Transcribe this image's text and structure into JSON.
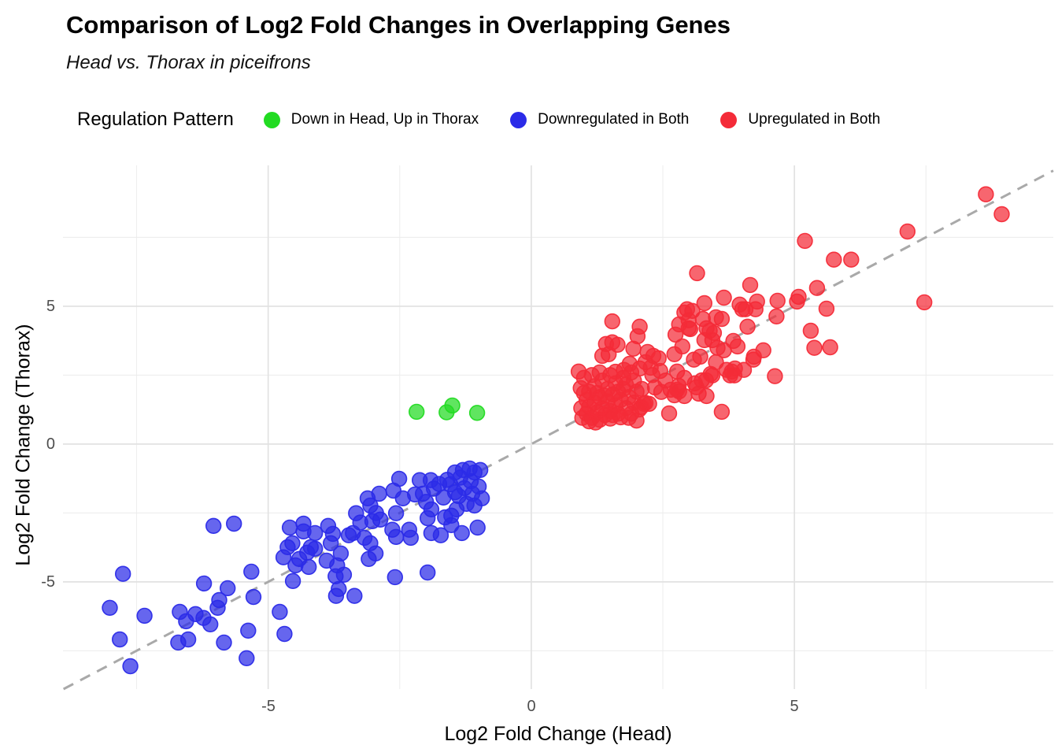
{
  "title": "Comparison of Log2 Fold Changes in Overlapping Genes",
  "subtitle": "Head vs. Thorax in piceifrons",
  "legend": {
    "title": "Regulation Pattern",
    "items": [
      {
        "label": "Down in Head, Up in Thorax",
        "color": "#22DB22"
      },
      {
        "label": "Downregulated in Both",
        "color": "#2B2BE8"
      },
      {
        "label": "Upregulated in Both",
        "color": "#F42B38"
      }
    ]
  },
  "axes": {
    "x_title": "Log2 Fold Change (Head)",
    "y_title": "Log2 Fold Change (Thorax)"
  },
  "chart_data": {
    "type": "scatter",
    "title": "Comparison of Log2 Fold Changes in Overlapping Genes",
    "subtitle": "Head vs. Thorax in piceifrons",
    "xlabel": "Log2 Fold Change (Head)",
    "ylabel": "Log2 Fold Change (Thorax)",
    "xlim": [
      -8.9,
      9.92
    ],
    "ylim": [
      -8.89,
      10.11
    ],
    "xticks_major": [
      -5,
      0,
      5
    ],
    "xticks_minor": [
      -7.5,
      -2.5,
      2.5,
      7.5
    ],
    "yticks_major": [
      5,
      0,
      -5
    ],
    "yticks_minor": [
      7.5,
      2.5,
      -2.5,
      -7.5
    ],
    "xtick_labels": [
      "-5",
      "0",
      "5"
    ],
    "ytick_labels": [
      "5",
      "0",
      "-5"
    ],
    "grid": true,
    "legend_position": "top",
    "reference_line": {
      "type": "identity y=x",
      "style": "dashed",
      "color": "#A9A9A9"
    },
    "series": [
      {
        "name": "Down in Head, Up in Thorax",
        "color": "#22DB22",
        "points": [
          [
            -2.18,
            1.17
          ],
          [
            -1.61,
            1.15
          ],
          [
            -1.5,
            1.4
          ],
          [
            -1.03,
            1.13
          ]
        ]
      },
      {
        "name": "Downregulated in Both",
        "color": "#2B2BE8",
        "points": [
          [
            -8.01,
            -5.94
          ],
          [
            -7.76,
            -4.71
          ],
          [
            -7.82,
            -7.09
          ],
          [
            -7.62,
            -8.06
          ],
          [
            -7.35,
            -6.23
          ],
          [
            -6.71,
            -7.2
          ],
          [
            -6.68,
            -6.09
          ],
          [
            -6.56,
            -6.43
          ],
          [
            -6.52,
            -7.09
          ],
          [
            -6.38,
            -6.17
          ],
          [
            -6.23,
            -6.31
          ],
          [
            -6.22,
            -5.06
          ],
          [
            -6.1,
            -6.54
          ],
          [
            -6.04,
            -2.97
          ],
          [
            -5.96,
            -5.94
          ],
          [
            -5.93,
            -5.66
          ],
          [
            -5.84,
            -7.2
          ],
          [
            -5.77,
            -5.23
          ],
          [
            -5.65,
            -2.89
          ],
          [
            -5.41,
            -7.77
          ],
          [
            -5.38,
            -6.77
          ],
          [
            -5.32,
            -4.63
          ],
          [
            -5.28,
            -5.55
          ],
          [
            -4.78,
            -6.09
          ],
          [
            -4.69,
            -6.89
          ],
          [
            -4.71,
            -4.11
          ],
          [
            -4.63,
            -3.74
          ],
          [
            -4.59,
            -3.03
          ],
          [
            -4.54,
            -3.6
          ],
          [
            -4.48,
            -4.4
          ],
          [
            -4.53,
            -4.97
          ],
          [
            -4.41,
            -4.17
          ],
          [
            -4.33,
            -2.89
          ],
          [
            -4.33,
            -3.17
          ],
          [
            -4.26,
            -3.94
          ],
          [
            -4.23,
            -4.46
          ],
          [
            -4.19,
            -3.74
          ],
          [
            -4.11,
            -3.23
          ],
          [
            -4.11,
            -3.8
          ],
          [
            -3.89,
            -4.23
          ],
          [
            -3.86,
            -2.97
          ],
          [
            -3.81,
            -3.6
          ],
          [
            -3.77,
            -3.26
          ],
          [
            -3.72,
            -4.8
          ],
          [
            -3.71,
            -5.51
          ],
          [
            -3.69,
            -4.4
          ],
          [
            -3.66,
            -5.26
          ],
          [
            -3.62,
            -3.97
          ],
          [
            -3.56,
            -4.74
          ],
          [
            -3.47,
            -3.31
          ],
          [
            -3.39,
            -3.23
          ],
          [
            -3.36,
            -5.51
          ],
          [
            -3.33,
            -2.51
          ],
          [
            -3.25,
            -2.85
          ],
          [
            -3.17,
            -3.4
          ],
          [
            -3.11,
            -1.97
          ],
          [
            -3.09,
            -4.17
          ],
          [
            -3.06,
            -2.23
          ],
          [
            -3.06,
            -3.6
          ],
          [
            -3.02,
            -2.8
          ],
          [
            -2.96,
            -3.97
          ],
          [
            -2.95,
            -2.5
          ],
          [
            -2.89,
            -1.8
          ],
          [
            -2.87,
            -2.74
          ],
          [
            -2.64,
            -3.11
          ],
          [
            -2.62,
            -1.69
          ],
          [
            -2.59,
            -4.83
          ],
          [
            -2.57,
            -2.51
          ],
          [
            -2.57,
            -3.37
          ],
          [
            -2.51,
            -1.26
          ],
          [
            -2.44,
            -1.97
          ],
          [
            -2.32,
            -3.11
          ],
          [
            -2.29,
            -3.4
          ],
          [
            -2.21,
            -1.83
          ],
          [
            -2.12,
            -1.31
          ],
          [
            -2.06,
            -1.8
          ],
          [
            -2.0,
            -2.1
          ],
          [
            -1.97,
            -2.69
          ],
          [
            -1.97,
            -4.66
          ],
          [
            -1.91,
            -1.31
          ],
          [
            -1.9,
            -2.37
          ],
          [
            -1.9,
            -3.23
          ],
          [
            -1.85,
            -1.62
          ],
          [
            -1.75,
            -1.45
          ],
          [
            -1.72,
            -3.31
          ],
          [
            -1.67,
            -1.94
          ],
          [
            -1.64,
            -2.66
          ],
          [
            -1.6,
            -1.3
          ],
          [
            -1.54,
            -1.46
          ],
          [
            -1.52,
            -2.6
          ],
          [
            -1.52,
            -2.94
          ],
          [
            -1.45,
            -1.03
          ],
          [
            -1.45,
            -1.75
          ],
          [
            -1.42,
            -2.37
          ],
          [
            -1.38,
            -1.89
          ],
          [
            -1.35,
            -1.22
          ],
          [
            -1.32,
            -3.23
          ],
          [
            -1.3,
            -0.94
          ],
          [
            -1.27,
            -1.6
          ],
          [
            -1.23,
            -2.17
          ],
          [
            -1.17,
            -0.89
          ],
          [
            -1.15,
            -1.35
          ],
          [
            -1.12,
            -1.8
          ],
          [
            -1.08,
            -1.03
          ],
          [
            -1.08,
            -2.23
          ],
          [
            -1.02,
            -3.03
          ],
          [
            -1.0,
            -1.54
          ],
          [
            -0.97,
            -0.94
          ],
          [
            -0.94,
            -1.97
          ]
        ]
      },
      {
        "name": "Upregulated in Both",
        "color": "#F42B38",
        "points": [
          [
            8.64,
            9.06
          ],
          [
            8.94,
            8.34
          ],
          [
            7.15,
            7.71
          ],
          [
            7.47,
            5.14
          ],
          [
            6.08,
            6.69
          ],
          [
            5.75,
            6.69
          ],
          [
            5.43,
            5.66
          ],
          [
            5.2,
            7.37
          ],
          [
            5.61,
            4.91
          ],
          [
            5.38,
            3.49
          ],
          [
            5.68,
            3.51
          ],
          [
            5.31,
            4.11
          ],
          [
            5.08,
            5.34
          ],
          [
            5.05,
            5.17
          ],
          [
            4.68,
            5.2
          ],
          [
            4.66,
            4.63
          ],
          [
            4.29,
            5.17
          ],
          [
            4.16,
            5.77
          ],
          [
            4.07,
            4.89
          ],
          [
            4.01,
            4.89
          ],
          [
            4.26,
            4.89
          ],
          [
            4.11,
            4.26
          ],
          [
            4.23,
            3.17
          ],
          [
            4.41,
            3.4
          ],
          [
            4.22,
            3.06
          ],
          [
            4.63,
            2.46
          ],
          [
            4.04,
            2.69
          ],
          [
            3.96,
            5.06
          ],
          [
            3.92,
            3.54
          ],
          [
            3.84,
            3.74
          ],
          [
            3.66,
            5.31
          ],
          [
            3.62,
            4.54
          ],
          [
            3.51,
            4.6
          ],
          [
            3.47,
            4.03
          ],
          [
            3.33,
            4.2
          ],
          [
            3.29,
            5.11
          ],
          [
            3.29,
            3.77
          ],
          [
            3.24,
            2.31
          ],
          [
            3.21,
            3.17
          ],
          [
            3.18,
            1.83
          ],
          [
            3.15,
            6.2
          ],
          [
            3.14,
            2.06
          ],
          [
            3.11,
            2.2
          ],
          [
            3.09,
            3.06
          ],
          [
            3.06,
            4.83
          ],
          [
            3.02,
            4.17
          ],
          [
            2.99,
            4.2
          ],
          [
            2.96,
            4.89
          ],
          [
            2.91,
            4.77
          ],
          [
            2.91,
            2.4
          ],
          [
            2.91,
            1.74
          ],
          [
            2.87,
            3.54
          ],
          [
            2.81,
            4.34
          ],
          [
            2.81,
            1.91
          ],
          [
            2.8,
            2.11
          ],
          [
            2.77,
            2.63
          ],
          [
            2.77,
            1.97
          ],
          [
            2.74,
            3.97
          ],
          [
            2.72,
            3.26
          ],
          [
            2.72,
            1.77
          ],
          [
            2.65,
            1.97
          ],
          [
            2.62,
            1.11
          ],
          [
            2.55,
            2.3
          ],
          [
            2.47,
            1.89
          ],
          [
            2.45,
            2.65
          ],
          [
            2.42,
            3.11
          ],
          [
            2.35,
            2.05
          ],
          [
            2.32,
            3.2
          ],
          [
            2.3,
            2.5
          ],
          [
            2.27,
            2.77
          ],
          [
            2.24,
            1.46
          ],
          [
            2.21,
            3.34
          ],
          [
            2.17,
            2.97
          ],
          [
            2.17,
            1.49
          ],
          [
            2.14,
            1.46
          ],
          [
            2.09,
            1.34
          ],
          [
            2.06,
            4.26
          ],
          [
            2.06,
            2.74
          ],
          [
            2.02,
            3.91
          ],
          [
            1.94,
            3.46
          ],
          [
            1.87,
            2.91
          ],
          [
            1.76,
            2.69
          ],
          [
            1.64,
            3.6
          ],
          [
            1.54,
            4.45
          ],
          [
            1.54,
            3.69
          ],
          [
            1.47,
            3.26
          ],
          [
            1.42,
            3.63
          ],
          [
            1.35,
            3.2
          ],
          [
            0.9,
            2.63
          ],
          [
            1.0,
            2.4
          ],
          [
            0.94,
            2.03
          ],
          [
            2.99,
            4.49
          ],
          [
            3.26,
            4.54
          ],
          [
            3.39,
            4.11
          ],
          [
            3.44,
            3.77
          ],
          [
            3.54,
            3.49
          ],
          [
            3.66,
            3.4
          ],
          [
            3.44,
            2.49
          ],
          [
            3.32,
            2.31
          ],
          [
            3.71,
            2.69
          ],
          [
            3.86,
            2.49
          ],
          [
            3.33,
            1.74
          ],
          [
            3.62,
            1.17
          ],
          [
            3.51,
            2.97
          ],
          [
            3.87,
            2.74
          ],
          [
            3.78,
            2.49
          ],
          [
            3.41,
            2.54
          ],
          [
            3.81,
            2.63
          ],
          [
            1.05,
            1.1
          ],
          [
            1.1,
            1.35
          ],
          [
            1.15,
            0.95
          ],
          [
            1.2,
            1.5
          ],
          [
            1.25,
            1.15
          ],
          [
            1.3,
            0.88
          ],
          [
            1.3,
            1.7
          ],
          [
            1.35,
            1.3
          ],
          [
            1.4,
            1.05
          ],
          [
            1.45,
            1.55
          ],
          [
            1.5,
            1.2
          ],
          [
            1.5,
            0.92
          ],
          [
            1.55,
            1.8
          ],
          [
            1.6,
            1.4
          ],
          [
            1.65,
            1.1
          ],
          [
            1.7,
            1.6
          ],
          [
            1.7,
            0.97
          ],
          [
            1.75,
            2.0
          ],
          [
            1.8,
            1.3
          ],
          [
            1.85,
            1.7
          ],
          [
            1.9,
            1.1
          ],
          [
            1.95,
            1.5
          ],
          [
            2.0,
            1.9
          ],
          [
            2.05,
            1.25
          ],
          [
            1.1,
            1.9
          ],
          [
            1.2,
            2.1
          ],
          [
            1.35,
            2.3
          ],
          [
            1.5,
            2.5
          ],
          [
            1.6,
            2.2
          ],
          [
            1.75,
            2.4
          ],
          [
            1.9,
            2.6
          ],
          [
            1.05,
            1.6
          ],
          [
            0.95,
            1.3
          ],
          [
            1.0,
            1.85
          ],
          [
            1.15,
            2.5
          ],
          [
            1.3,
            2.6
          ],
          [
            1.45,
            2.0
          ],
          [
            1.6,
            2.62
          ],
          [
            1.25,
            1.85
          ],
          [
            1.4,
            1.75
          ],
          [
            1.55,
            1.05
          ],
          [
            1.65,
            1.9
          ],
          [
            1.8,
            2.15
          ],
          [
            1.95,
            2.3
          ],
          [
            2.1,
            2.0
          ],
          [
            1.85,
            0.95
          ],
          [
            2.0,
            0.85
          ],
          [
            1.1,
            0.82
          ],
          [
            0.97,
            0.95
          ],
          [
            1.22,
            0.78
          ]
        ]
      }
    ]
  }
}
